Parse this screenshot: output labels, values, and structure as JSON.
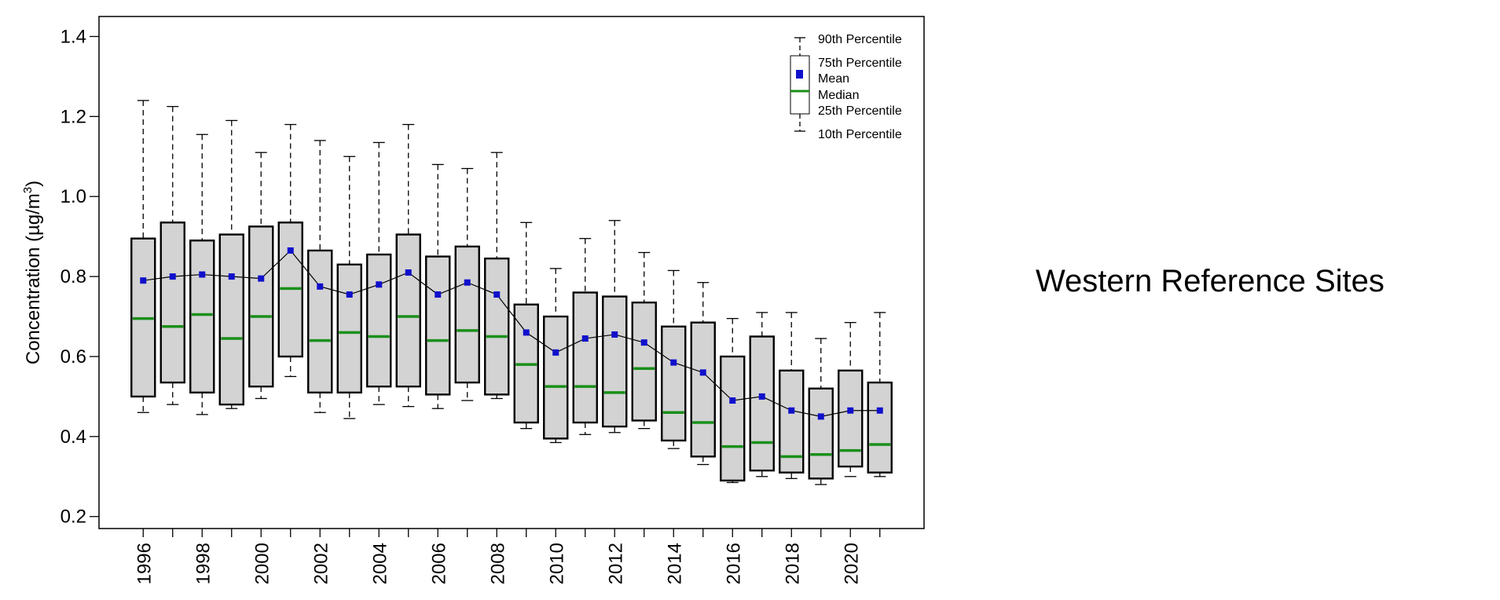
{
  "panel_title": "Western Reference Sites",
  "chart_data": {
    "type": "box",
    "ylabel": "Concentration (µg/m³)",
    "ylabel_parts": {
      "main": "Concentration (µg/m",
      "superscript": "3",
      "close": ")"
    },
    "ylim": [
      0.17,
      1.45
    ],
    "yticks": [
      0.2,
      0.4,
      0.6,
      0.8,
      1.0,
      1.2,
      1.4
    ],
    "ytick_labels": [
      "0.2",
      "0.4",
      "0.6",
      "0.8",
      "1.0",
      "1.2",
      "1.4"
    ],
    "xlim": [
      1994.5,
      2022.5
    ],
    "xticks": [
      1996,
      1997,
      1998,
      1999,
      2000,
      2001,
      2002,
      2003,
      2004,
      2005,
      2006,
      2007,
      2008,
      2009,
      2010,
      2011,
      2012,
      2013,
      2014,
      2015,
      2016,
      2017,
      2018,
      2019,
      2020,
      2021
    ],
    "xtick_labels": [
      "1996",
      "1998",
      "2000",
      "2002",
      "2004",
      "2006",
      "2008",
      "2010",
      "2012",
      "2014",
      "2016",
      "2018",
      "2020"
    ],
    "years": [
      1996,
      1997,
      1998,
      1999,
      2000,
      2001,
      2002,
      2003,
      2004,
      2005,
      2006,
      2007,
      2008,
      2009,
      2010,
      2011,
      2012,
      2013,
      2014,
      2015,
      2016,
      2017,
      2018,
      2019,
      2020,
      2021
    ],
    "p10": [
      0.46,
      0.48,
      0.455,
      0.47,
      0.495,
      0.55,
      0.46,
      0.445,
      0.48,
      0.475,
      0.47,
      0.49,
      0.495,
      0.42,
      0.385,
      0.405,
      0.41,
      0.42,
      0.37,
      0.33,
      0.285,
      0.3,
      0.295,
      0.28,
      0.3,
      0.3
    ],
    "p25": [
      0.5,
      0.535,
      0.51,
      0.48,
      0.525,
      0.6,
      0.51,
      0.51,
      0.525,
      0.525,
      0.505,
      0.535,
      0.505,
      0.435,
      0.395,
      0.435,
      0.425,
      0.44,
      0.39,
      0.35,
      0.29,
      0.315,
      0.31,
      0.295,
      0.325,
      0.31
    ],
    "median": [
      0.695,
      0.675,
      0.705,
      0.645,
      0.7,
      0.77,
      0.64,
      0.66,
      0.65,
      0.7,
      0.64,
      0.665,
      0.65,
      0.58,
      0.525,
      0.525,
      0.51,
      0.57,
      0.46,
      0.435,
      0.375,
      0.385,
      0.35,
      0.355,
      0.365,
      0.38
    ],
    "p75": [
      0.895,
      0.935,
      0.89,
      0.905,
      0.925,
      0.935,
      0.865,
      0.83,
      0.855,
      0.905,
      0.85,
      0.875,
      0.845,
      0.73,
      0.7,
      0.76,
      0.75,
      0.735,
      0.675,
      0.685,
      0.6,
      0.65,
      0.565,
      0.52,
      0.565,
      0.535
    ],
    "p90": [
      1.24,
      1.225,
      1.155,
      1.19,
      1.11,
      1.18,
      1.14,
      1.1,
      1.135,
      1.18,
      1.08,
      1.07,
      1.11,
      0.935,
      0.82,
      0.895,
      0.94,
      0.86,
      0.815,
      0.785,
      0.695,
      0.71,
      0.71,
      0.645,
      0.685,
      0.71
    ],
    "mean": [
      0.79,
      0.8,
      0.805,
      0.8,
      0.795,
      0.865,
      0.775,
      0.755,
      0.78,
      0.81,
      0.755,
      0.785,
      0.755,
      0.66,
      0.61,
      0.645,
      0.655,
      0.635,
      0.585,
      0.56,
      0.49,
      0.5,
      0.465,
      0.45,
      0.465,
      0.465
    ],
    "legend": {
      "position": "top-right",
      "entries": [
        "90th Percentile",
        "75th Percentile",
        "Mean",
        "Median",
        "25th Percentile",
        "10th Percentile"
      ]
    },
    "colors": {
      "box_fill": "#d3d3d3",
      "box_stroke": "#000000",
      "median": "#1a8f1a",
      "mean_marker": "#1010cc",
      "mean_line": "#000000",
      "whisker": "#000000"
    }
  }
}
